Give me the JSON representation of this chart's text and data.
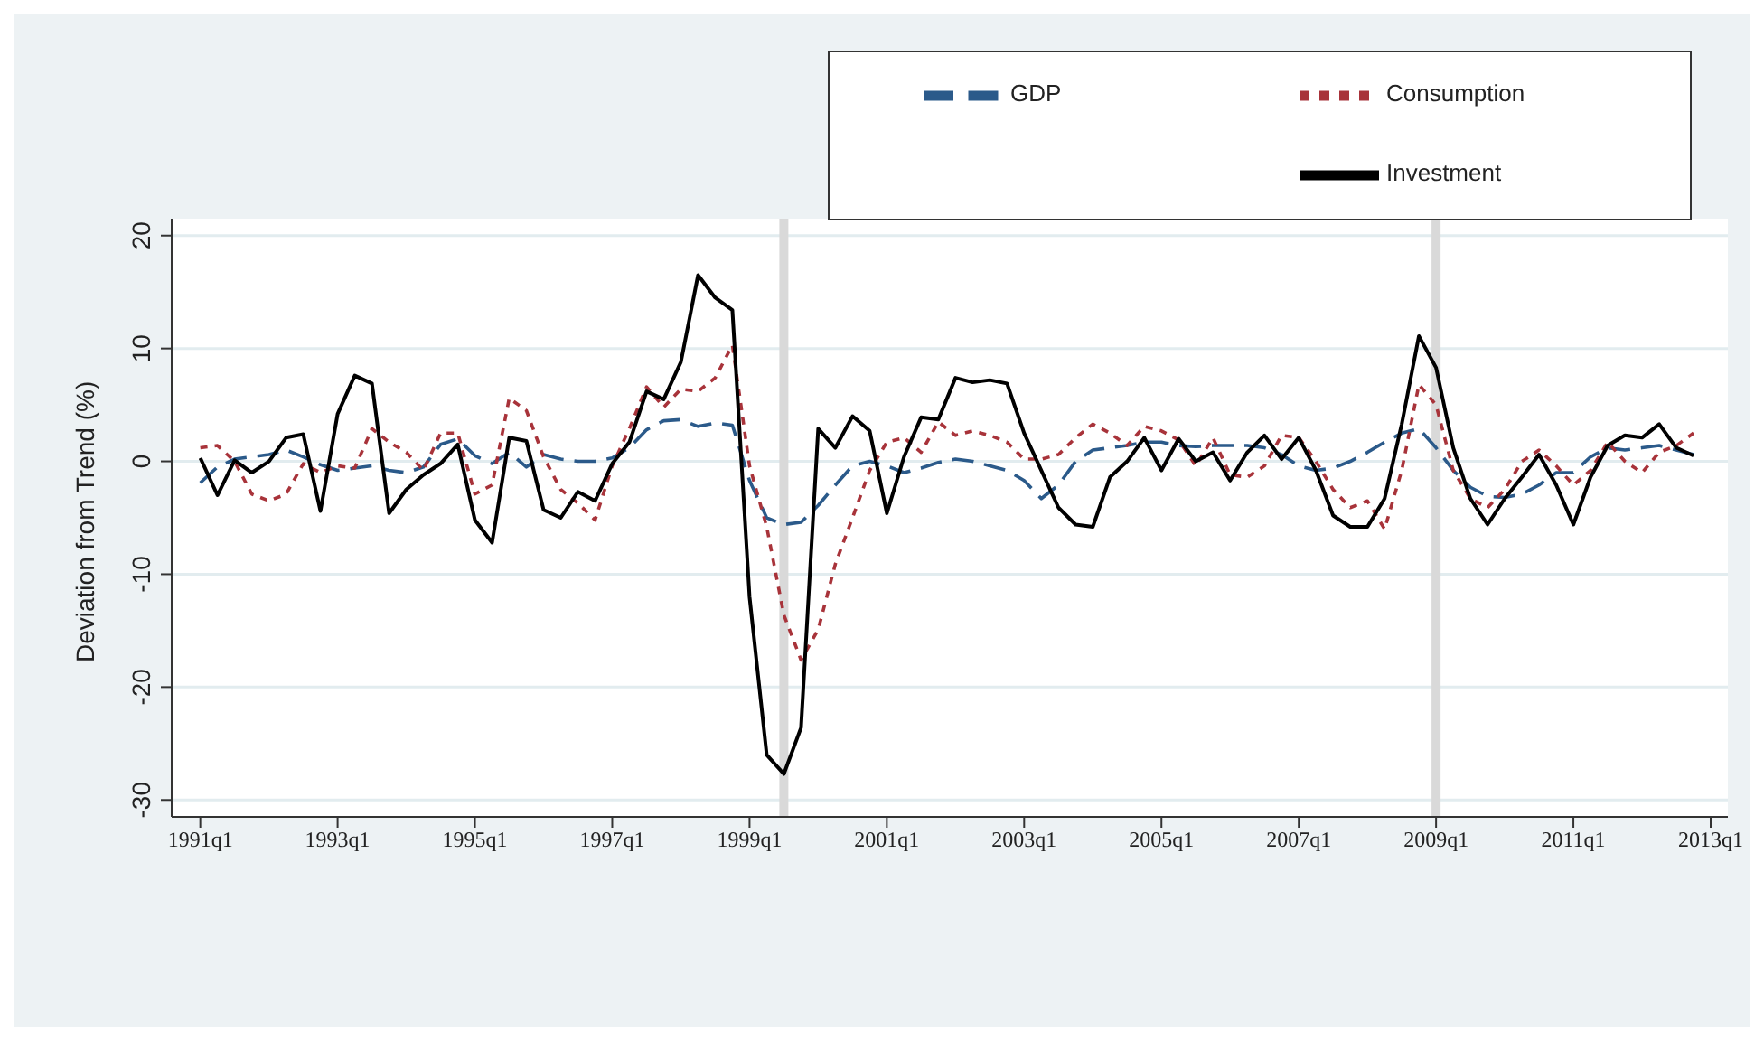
{
  "chart_data": {
    "type": "line",
    "ylabel": "Deviation from Trend (%)",
    "x": [
      "1991-01",
      "1991-04",
      "1991-07",
      "1991-10",
      "1992-01",
      "1992-04",
      "1992-07",
      "1992-10",
      "1993-01",
      "1993-04",
      "1993-07",
      "1993-10",
      "1994-01",
      "1994-04",
      "1994-07",
      "1994-10",
      "1995-01",
      "1995-04",
      "1995-07",
      "1995-10",
      "1996-01",
      "1996-04",
      "1996-07",
      "1996-10",
      "1997-01",
      "1997-04",
      "1997-07",
      "1997-10",
      "1998-01",
      "1998-04",
      "1998-07",
      "1998-10",
      "1999-01",
      "1999-04",
      "1999-07",
      "1999-10",
      "2000-01",
      "2000-04",
      "2000-07",
      "2000-10",
      "2001-01",
      "2001-04",
      "2001-07",
      "2001-10",
      "2002-01",
      "2002-04",
      "2002-07",
      "2002-10",
      "2003-01",
      "2003-04",
      "2003-07",
      "2003-10",
      "2004-01",
      "2004-04",
      "2004-07",
      "2004-10",
      "2005-01",
      "2005-04",
      "2005-07",
      "2005-10",
      "2006-01",
      "2006-04",
      "2006-07",
      "2006-10",
      "2007-01",
      "2007-04",
      "2007-07",
      "2007-10",
      "2008-01",
      "2008-04",
      "2008-07",
      "2008-10",
      "2009-01",
      "2009-04",
      "2009-07",
      "2009-10",
      "2010-01",
      "2010-04",
      "2010-07",
      "2010-10",
      "2011-01",
      "2011-04",
      "2011-07",
      "2011-10",
      "2012-01",
      "2012-04",
      "2012-07",
      "2012-10"
    ],
    "series": [
      {
        "name": "GDP",
        "color": "#2b5a8a",
        "line_style": "dashed",
        "values": [
          -1.9,
          -0.5,
          0.2,
          0.4,
          0.6,
          1.0,
          0.4,
          -0.3,
          -0.8,
          -0.6,
          -0.4,
          -0.8,
          -1.0,
          -0.5,
          1.5,
          2.0,
          0.5,
          -0.2,
          0.8,
          -0.5,
          0.6,
          0.2,
          0.0,
          0.0,
          0.3,
          1.2,
          2.8,
          3.6,
          3.7,
          3.1,
          3.4,
          3.2,
          -1.7,
          -5.0,
          -5.6,
          -5.4,
          -3.9,
          -2.1,
          -0.4,
          0.0,
          -0.4,
          -1.0,
          -0.6,
          -0.1,
          0.2,
          0.0,
          -0.4,
          -0.8,
          -1.7,
          -3.3,
          -2.1,
          0.0,
          1.0,
          1.2,
          1.4,
          1.7,
          1.7,
          1.4,
          1.3,
          1.4,
          1.4,
          1.4,
          1.2,
          0.6,
          -0.4,
          -0.8,
          -0.6,
          0.0,
          0.8,
          1.7,
          2.5,
          2.9,
          1.2,
          -0.8,
          -2.3,
          -3.1,
          -3.2,
          -2.9,
          -2.1,
          -1.0,
          -1.0,
          0.4,
          1.2,
          1.0,
          1.2,
          1.4,
          1.0,
          0.6
        ]
      },
      {
        "name": "Consumption",
        "color": "#a8333a",
        "line_style": "dotted",
        "values": [
          1.2,
          1.4,
          0.0,
          -2.9,
          -3.5,
          -2.9,
          -0.2,
          -1.0,
          -0.4,
          -0.6,
          2.9,
          1.7,
          0.8,
          -0.8,
          2.5,
          2.5,
          -2.9,
          -2.1,
          5.6,
          4.5,
          0.4,
          -2.5,
          -3.7,
          -5.2,
          -0.4,
          2.9,
          6.6,
          4.8,
          6.4,
          6.2,
          7.4,
          10.3,
          -0.4,
          -5.8,
          -13.6,
          -17.6,
          -14.9,
          -9.1,
          -5.0,
          -0.8,
          1.7,
          2.1,
          0.8,
          3.5,
          2.3,
          2.7,
          2.3,
          1.7,
          0.2,
          0.2,
          0.6,
          2.1,
          3.3,
          2.5,
          1.4,
          3.1,
          2.7,
          1.9,
          -0.4,
          2.1,
          -1.2,
          -1.4,
          -0.4,
          2.3,
          2.1,
          0.0,
          -2.5,
          -4.1,
          -3.5,
          -6.0,
          -0.8,
          6.8,
          5.0,
          -0.8,
          -3.3,
          -4.1,
          -2.5,
          0.0,
          1.0,
          -0.4,
          -2.1,
          -0.8,
          1.7,
          0.0,
          -1.0,
          0.8,
          1.4,
          2.5
        ]
      },
      {
        "name": "Investment",
        "color": "#000000",
        "line_style": "solid",
        "values": [
          0.3,
          -3.0,
          0.1,
          -1.0,
          0.0,
          2.1,
          2.4,
          -4.4,
          4.2,
          7.6,
          6.9,
          -4.6,
          -2.5,
          -1.2,
          -0.2,
          1.5,
          -5.2,
          -7.2,
          2.1,
          1.8,
          -4.3,
          -5.0,
          -2.7,
          -3.5,
          -0.2,
          1.7,
          6.2,
          5.5,
          8.8,
          16.5,
          14.5,
          13.4,
          -12.0,
          -26.0,
          -27.7,
          -23.6,
          2.9,
          1.2,
          4.0,
          2.7,
          -4.6,
          0.4,
          3.9,
          3.7,
          7.4,
          7.0,
          7.2,
          6.9,
          2.5,
          -0.8,
          -4.1,
          -5.6,
          -5.8,
          -1.4,
          0.0,
          2.1,
          -0.8,
          2.0,
          0.0,
          0.8,
          -1.7,
          0.8,
          2.3,
          0.2,
          2.1,
          -0.8,
          -4.8,
          -5.8,
          -5.8,
          -3.3,
          3.3,
          11.1,
          8.3,
          1.2,
          -3.3,
          -5.6,
          -3.3,
          -1.4,
          0.6,
          -2.1,
          -5.6,
          -1.4,
          1.4,
          2.3,
          2.1,
          3.3,
          1.2,
          0.5
        ]
      }
    ],
    "xlim": [
      "1990-08",
      "2013-04"
    ],
    "xticks": [
      {
        "value": "1991-01",
        "label": "1991q1"
      },
      {
        "value": "1993-01",
        "label": "1993q1"
      },
      {
        "value": "1995-01",
        "label": "1995q1"
      },
      {
        "value": "1997-01",
        "label": "1997q1"
      },
      {
        "value": "1999-01",
        "label": "1999q1"
      },
      {
        "value": "2001-01",
        "label": "2001q1"
      },
      {
        "value": "2003-01",
        "label": "2003q1"
      },
      {
        "value": "2005-01",
        "label": "2005q1"
      },
      {
        "value": "2007-01",
        "label": "2007q1"
      },
      {
        "value": "2009-01",
        "label": "2009q1"
      },
      {
        "value": "2011-01",
        "label": "2011q1"
      },
      {
        "value": "2013-01",
        "label": "2013q1"
      }
    ],
    "ylim": [
      -31.5,
      21.5
    ],
    "yticks": [
      -30,
      -20,
      -10,
      0,
      10,
      20
    ],
    "ref_lines": [
      {
        "axis": "x",
        "value": "1999-07",
        "color": "#d9d9d9"
      },
      {
        "axis": "x",
        "value": "2009-01",
        "color": "#d9d9d9"
      }
    ],
    "grid": "y",
    "legend": "top right",
    "marker": "none"
  }
}
